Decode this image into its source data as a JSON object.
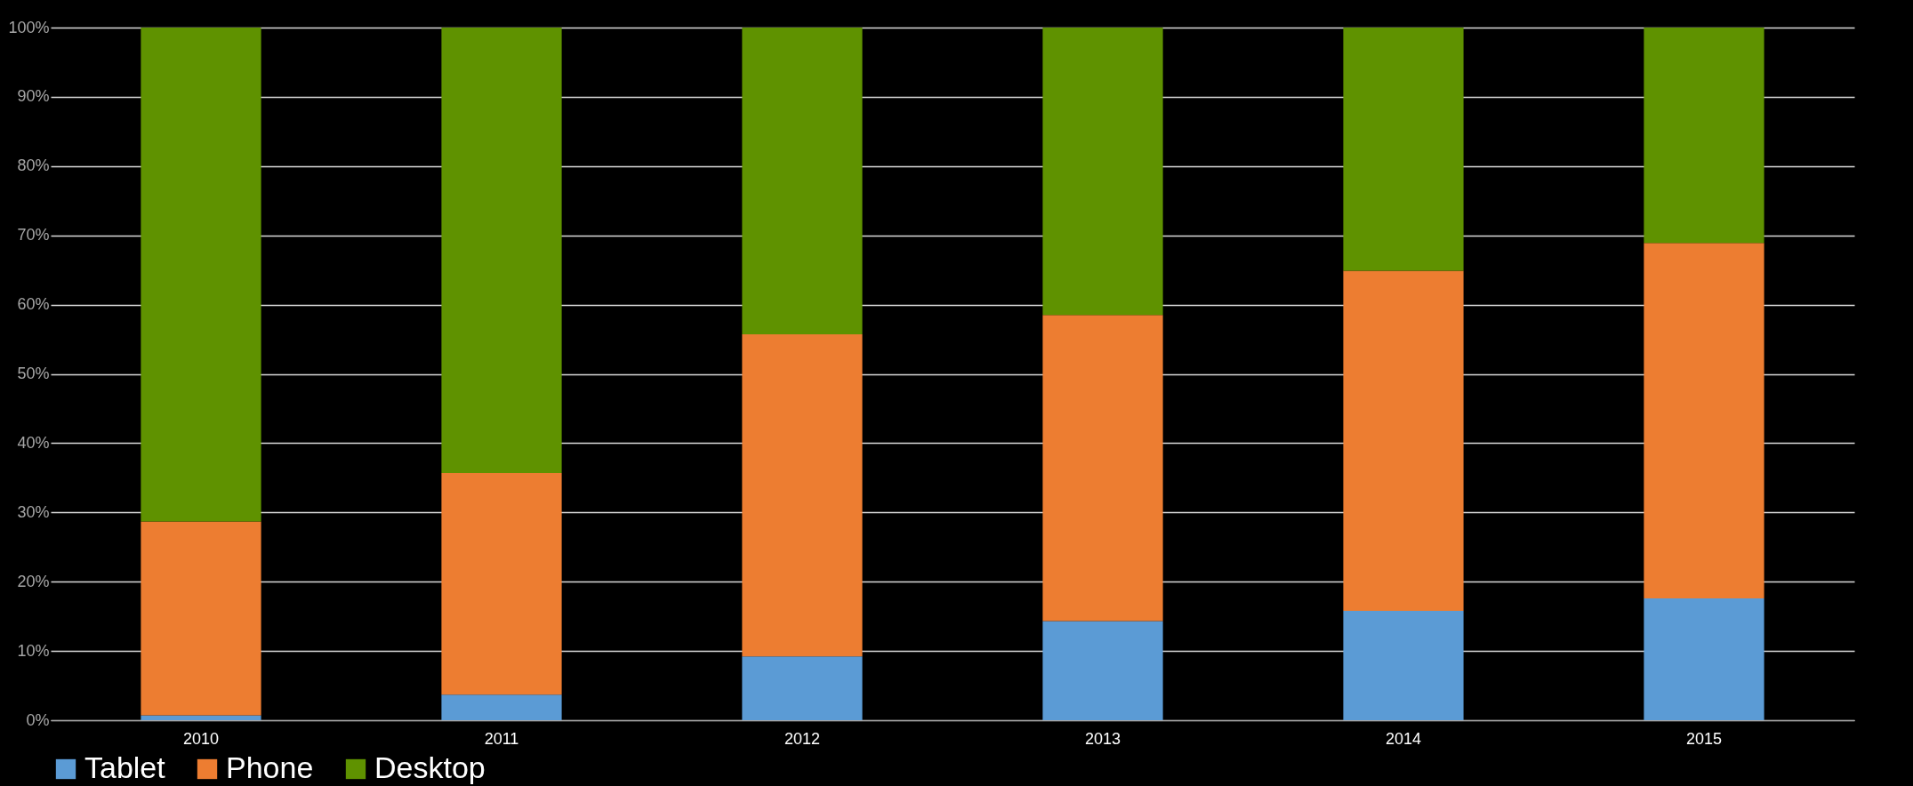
{
  "chart_data": {
    "type": "bar",
    "stacked": true,
    "categories": [
      "2010",
      "2011",
      "2012",
      "2013",
      "2014",
      "2015"
    ],
    "series": [
      {
        "name": "Tablet",
        "color": "#5b9bd5",
        "values": [
          0.7,
          3.7,
          9.2,
          14.3,
          15.8,
          17.6
        ]
      },
      {
        "name": "Phone",
        "color": "#ed7d31",
        "values": [
          28.0,
          32.0,
          46.5,
          44.2,
          49.1,
          51.3
        ]
      },
      {
        "name": "Desktop",
        "color": "#5f9200",
        "values": [
          71.3,
          64.3,
          44.3,
          41.5,
          35.1,
          31.1
        ]
      }
    ],
    "ylim": [
      0,
      100
    ],
    "yticks": [
      {
        "value": 0,
        "label": "0%"
      },
      {
        "value": 10,
        "label": "10%"
      },
      {
        "value": 20,
        "label": "20%"
      },
      {
        "value": 30,
        "label": "30%"
      },
      {
        "value": 40,
        "label": "40%"
      },
      {
        "value": 50,
        "label": "50%"
      },
      {
        "value": 60,
        "label": "60%"
      },
      {
        "value": 70,
        "label": "70%"
      },
      {
        "value": 80,
        "label": "80%"
      },
      {
        "value": 90,
        "label": "90%"
      },
      {
        "value": 100,
        "label": "100%"
      }
    ],
    "grid": "y",
    "legend": "bottom"
  }
}
